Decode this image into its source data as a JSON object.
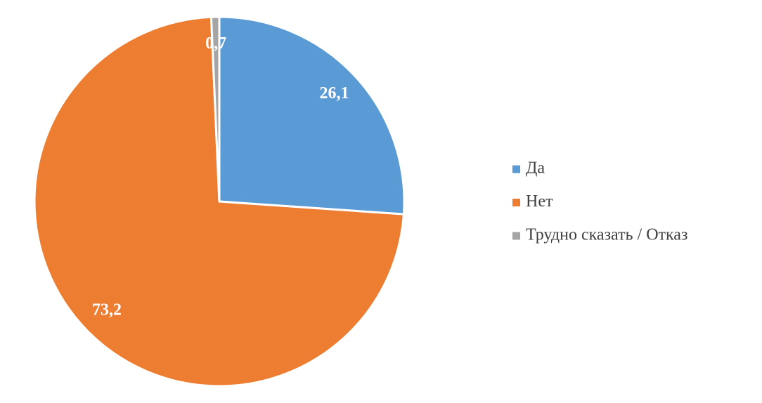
{
  "chart_data": {
    "type": "pie",
    "categories": [
      "Да",
      "Нет",
      "Трудно сказать / Отказ"
    ],
    "values": [
      26.1,
      73.2,
      0.7
    ],
    "value_labels": [
      "26,1",
      "73,2",
      "0,7"
    ],
    "colors": [
      "#5b9bd5",
      "#ed7d31",
      "#a5a5a5"
    ],
    "legend": "right"
  }
}
